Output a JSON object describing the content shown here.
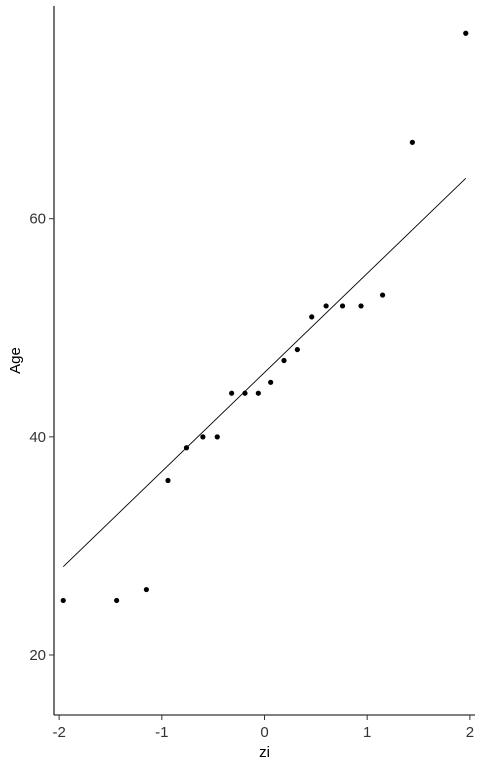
{
  "chart_data": {
    "type": "scatter",
    "title": "",
    "xlabel": "zi",
    "ylabel": "Age",
    "xlim": [
      -2.05,
      2.05
    ],
    "ylim": [
      14.5,
      79.5
    ],
    "x_ticks": [
      -2,
      -1,
      0,
      1,
      2
    ],
    "x_tick_labels": [
      "-2",
      "-1",
      "0",
      "1",
      "2"
    ],
    "y_ticks": [
      20,
      40,
      60
    ],
    "y_tick_labels": [
      "20",
      "40",
      "60"
    ],
    "grid": false,
    "legend": "none",
    "colors": {
      "points": "#000000",
      "line": "#000000",
      "axis": "#000000",
      "tick_label": "#333333"
    },
    "points": {
      "x": [
        -1.96,
        -1.44,
        -1.15,
        -0.94,
        -0.76,
        -0.6,
        -0.46,
        -0.32,
        -0.19,
        -0.06,
        0.06,
        0.19,
        0.32,
        0.46,
        0.6,
        0.76,
        0.94,
        1.15,
        1.44,
        1.96
      ],
      "y": [
        25,
        25,
        26,
        36,
        39,
        40,
        40,
        44,
        44,
        44,
        45,
        47,
        48,
        51,
        52,
        52,
        52,
        53,
        67,
        77
      ]
    },
    "reference_line": {
      "x": [
        -1.96,
        1.96
      ],
      "y": [
        28.1,
        63.7
      ]
    }
  }
}
